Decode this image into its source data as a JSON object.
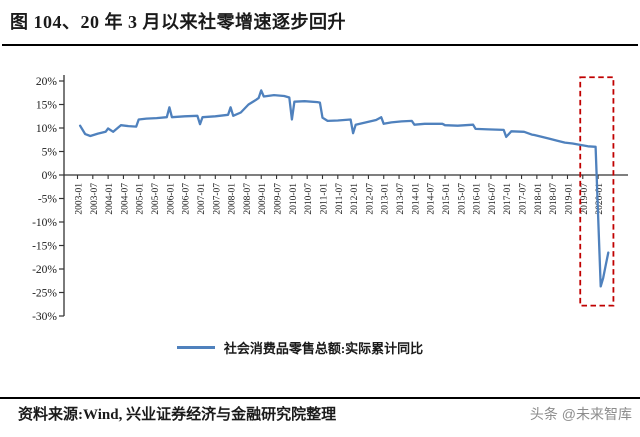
{
  "title": "图 104、20 年 3 月以来社零增速逐步回升",
  "source": "资料来源:Wind, 兴业证券经济与金融研究院整理",
  "watermark": "头条 @未来智库",
  "colors": {
    "line": "#4F81BD",
    "highlight_box": "#C00000",
    "axis": "#333333",
    "text": "#1A1A1A",
    "watermark": "#8C8C8C"
  },
  "chart_data": {
    "type": "line",
    "title": "图 104、20 年 3 月以来社零增速逐步回升",
    "xlabel": "",
    "ylabel": "",
    "ylim": [
      -30,
      20
    ],
    "grid": false,
    "legend_position": "bottom",
    "y_ticks": [
      "20%",
      "15%",
      "10%",
      "5%",
      "0%",
      "-5%",
      "-10%",
      "-15%",
      "-20%",
      "-25%",
      "-30%"
    ],
    "x_ticks": [
      "2003-01",
      "2003-07",
      "2004-01",
      "2004-07",
      "2005-01",
      "2005-07",
      "2006-01",
      "2006-07",
      "2007-01",
      "2007-07",
      "2008-01",
      "2008-07",
      "2009-01",
      "2009-07",
      "2010-01",
      "2010-07",
      "2011-01",
      "2011-07",
      "2012-01",
      "2012-07",
      "2013-01",
      "2013-07",
      "2014-01",
      "2014-07",
      "2015-01",
      "2015-07",
      "2016-01",
      "2016-07",
      "2017-01",
      "2017-07",
      "2018-01",
      "2018-07",
      "2019-01",
      "2019-07",
      "2020-01"
    ],
    "series": [
      {
        "name": "社会消费品零售总额:实际累计同比",
        "unit": "%",
        "points": [
          [
            "2003-02",
            10.5
          ],
          [
            "2003-04",
            8.7
          ],
          [
            "2003-06",
            8.3
          ],
          [
            "2003-09",
            8.8
          ],
          [
            "2003-12",
            9.2
          ],
          [
            "2004-01",
            9.9
          ],
          [
            "2004-03",
            9.2
          ],
          [
            "2004-06",
            10.6
          ],
          [
            "2004-09",
            10.4
          ],
          [
            "2004-12",
            10.3
          ],
          [
            "2005-01",
            11.8
          ],
          [
            "2005-04",
            12.0
          ],
          [
            "2005-08",
            12.1
          ],
          [
            "2005-12",
            12.3
          ],
          [
            "2006-01",
            14.4
          ],
          [
            "2006-02",
            12.3
          ],
          [
            "2006-07",
            12.5
          ],
          [
            "2006-12",
            12.6
          ],
          [
            "2007-01",
            10.8
          ],
          [
            "2007-02",
            12.3
          ],
          [
            "2007-07",
            12.5
          ],
          [
            "2007-12",
            12.8
          ],
          [
            "2008-01",
            14.4
          ],
          [
            "2008-02",
            12.6
          ],
          [
            "2008-05",
            13.3
          ],
          [
            "2008-08",
            15.0
          ],
          [
            "2008-11",
            16.0
          ],
          [
            "2008-12",
            16.4
          ],
          [
            "2009-01",
            18.0
          ],
          [
            "2009-02",
            16.7
          ],
          [
            "2009-06",
            17.0
          ],
          [
            "2009-10",
            16.8
          ],
          [
            "2009-12",
            16.5
          ],
          [
            "2010-01",
            11.8
          ],
          [
            "2010-02",
            15.6
          ],
          [
            "2010-06",
            15.7
          ],
          [
            "2010-11",
            15.5
          ],
          [
            "2010-12",
            15.4
          ],
          [
            "2011-01",
            12.2
          ],
          [
            "2011-03",
            11.5
          ],
          [
            "2011-07",
            11.6
          ],
          [
            "2011-12",
            11.8
          ],
          [
            "2012-01",
            8.9
          ],
          [
            "2012-02",
            10.7
          ],
          [
            "2012-06",
            11.2
          ],
          [
            "2012-10",
            11.7
          ],
          [
            "2012-12",
            12.3
          ],
          [
            "2013-01",
            10.9
          ],
          [
            "2013-04",
            11.2
          ],
          [
            "2013-08",
            11.4
          ],
          [
            "2013-12",
            11.5
          ],
          [
            "2014-01",
            10.7
          ],
          [
            "2014-05",
            10.9
          ],
          [
            "2014-12",
            10.9
          ],
          [
            "2015-01",
            10.6
          ],
          [
            "2015-06",
            10.5
          ],
          [
            "2015-12",
            10.7
          ],
          [
            "2016-01",
            9.8
          ],
          [
            "2016-06",
            9.7
          ],
          [
            "2016-12",
            9.6
          ],
          [
            "2017-01",
            8.1
          ],
          [
            "2017-03",
            9.3
          ],
          [
            "2017-08",
            9.2
          ],
          [
            "2017-11",
            8.6
          ],
          [
            "2017-12",
            8.5
          ],
          [
            "2018-03",
            8.1
          ],
          [
            "2018-06",
            7.7
          ],
          [
            "2018-09",
            7.3
          ],
          [
            "2018-12",
            6.9
          ],
          [
            "2019-03",
            6.7
          ],
          [
            "2019-06",
            6.4
          ],
          [
            "2019-09",
            6.1
          ],
          [
            "2019-12",
            6.0
          ],
          [
            "2020-02",
            -23.7
          ],
          [
            "2020-03",
            -21.9
          ],
          [
            "2020-04",
            -19.1
          ],
          [
            "2020-05",
            -16.5
          ]
        ]
      }
    ],
    "annotation": {
      "shape": "dashed-box",
      "x_from": "2019-06",
      "x_to": "2020-07",
      "y_from": -27.8,
      "y_to": 20.8,
      "color": "#C00000"
    }
  }
}
